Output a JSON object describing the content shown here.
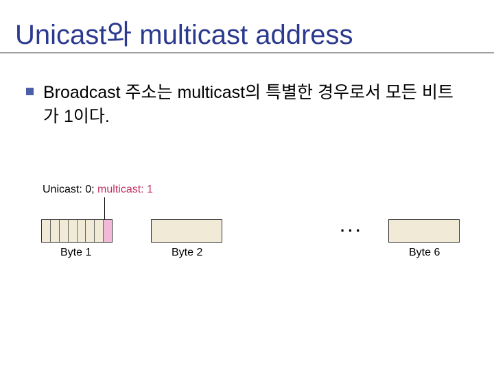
{
  "title": "Unicast와 multicast address",
  "bullet": "Broadcast 주소는 multicast의 특별한 경우로서 모든 비트가 1이다.",
  "diagram": {
    "legend_unicast": "Unicast: 0; ",
    "legend_multicast": "multicast: 1",
    "byte1_label": "Byte 1",
    "byte2_label": "Byte 2",
    "byte6_label": "Byte 6",
    "ellipsis": "···",
    "byte1_bits": 8,
    "colors": {
      "title": "#2b3a8f",
      "bullet_square": "#4a5fa8",
      "byte_fill": "#f0ead6",
      "last_bit_fill": "#f2b8d8",
      "multicast_text": "#c03060",
      "border": "#333333"
    }
  }
}
